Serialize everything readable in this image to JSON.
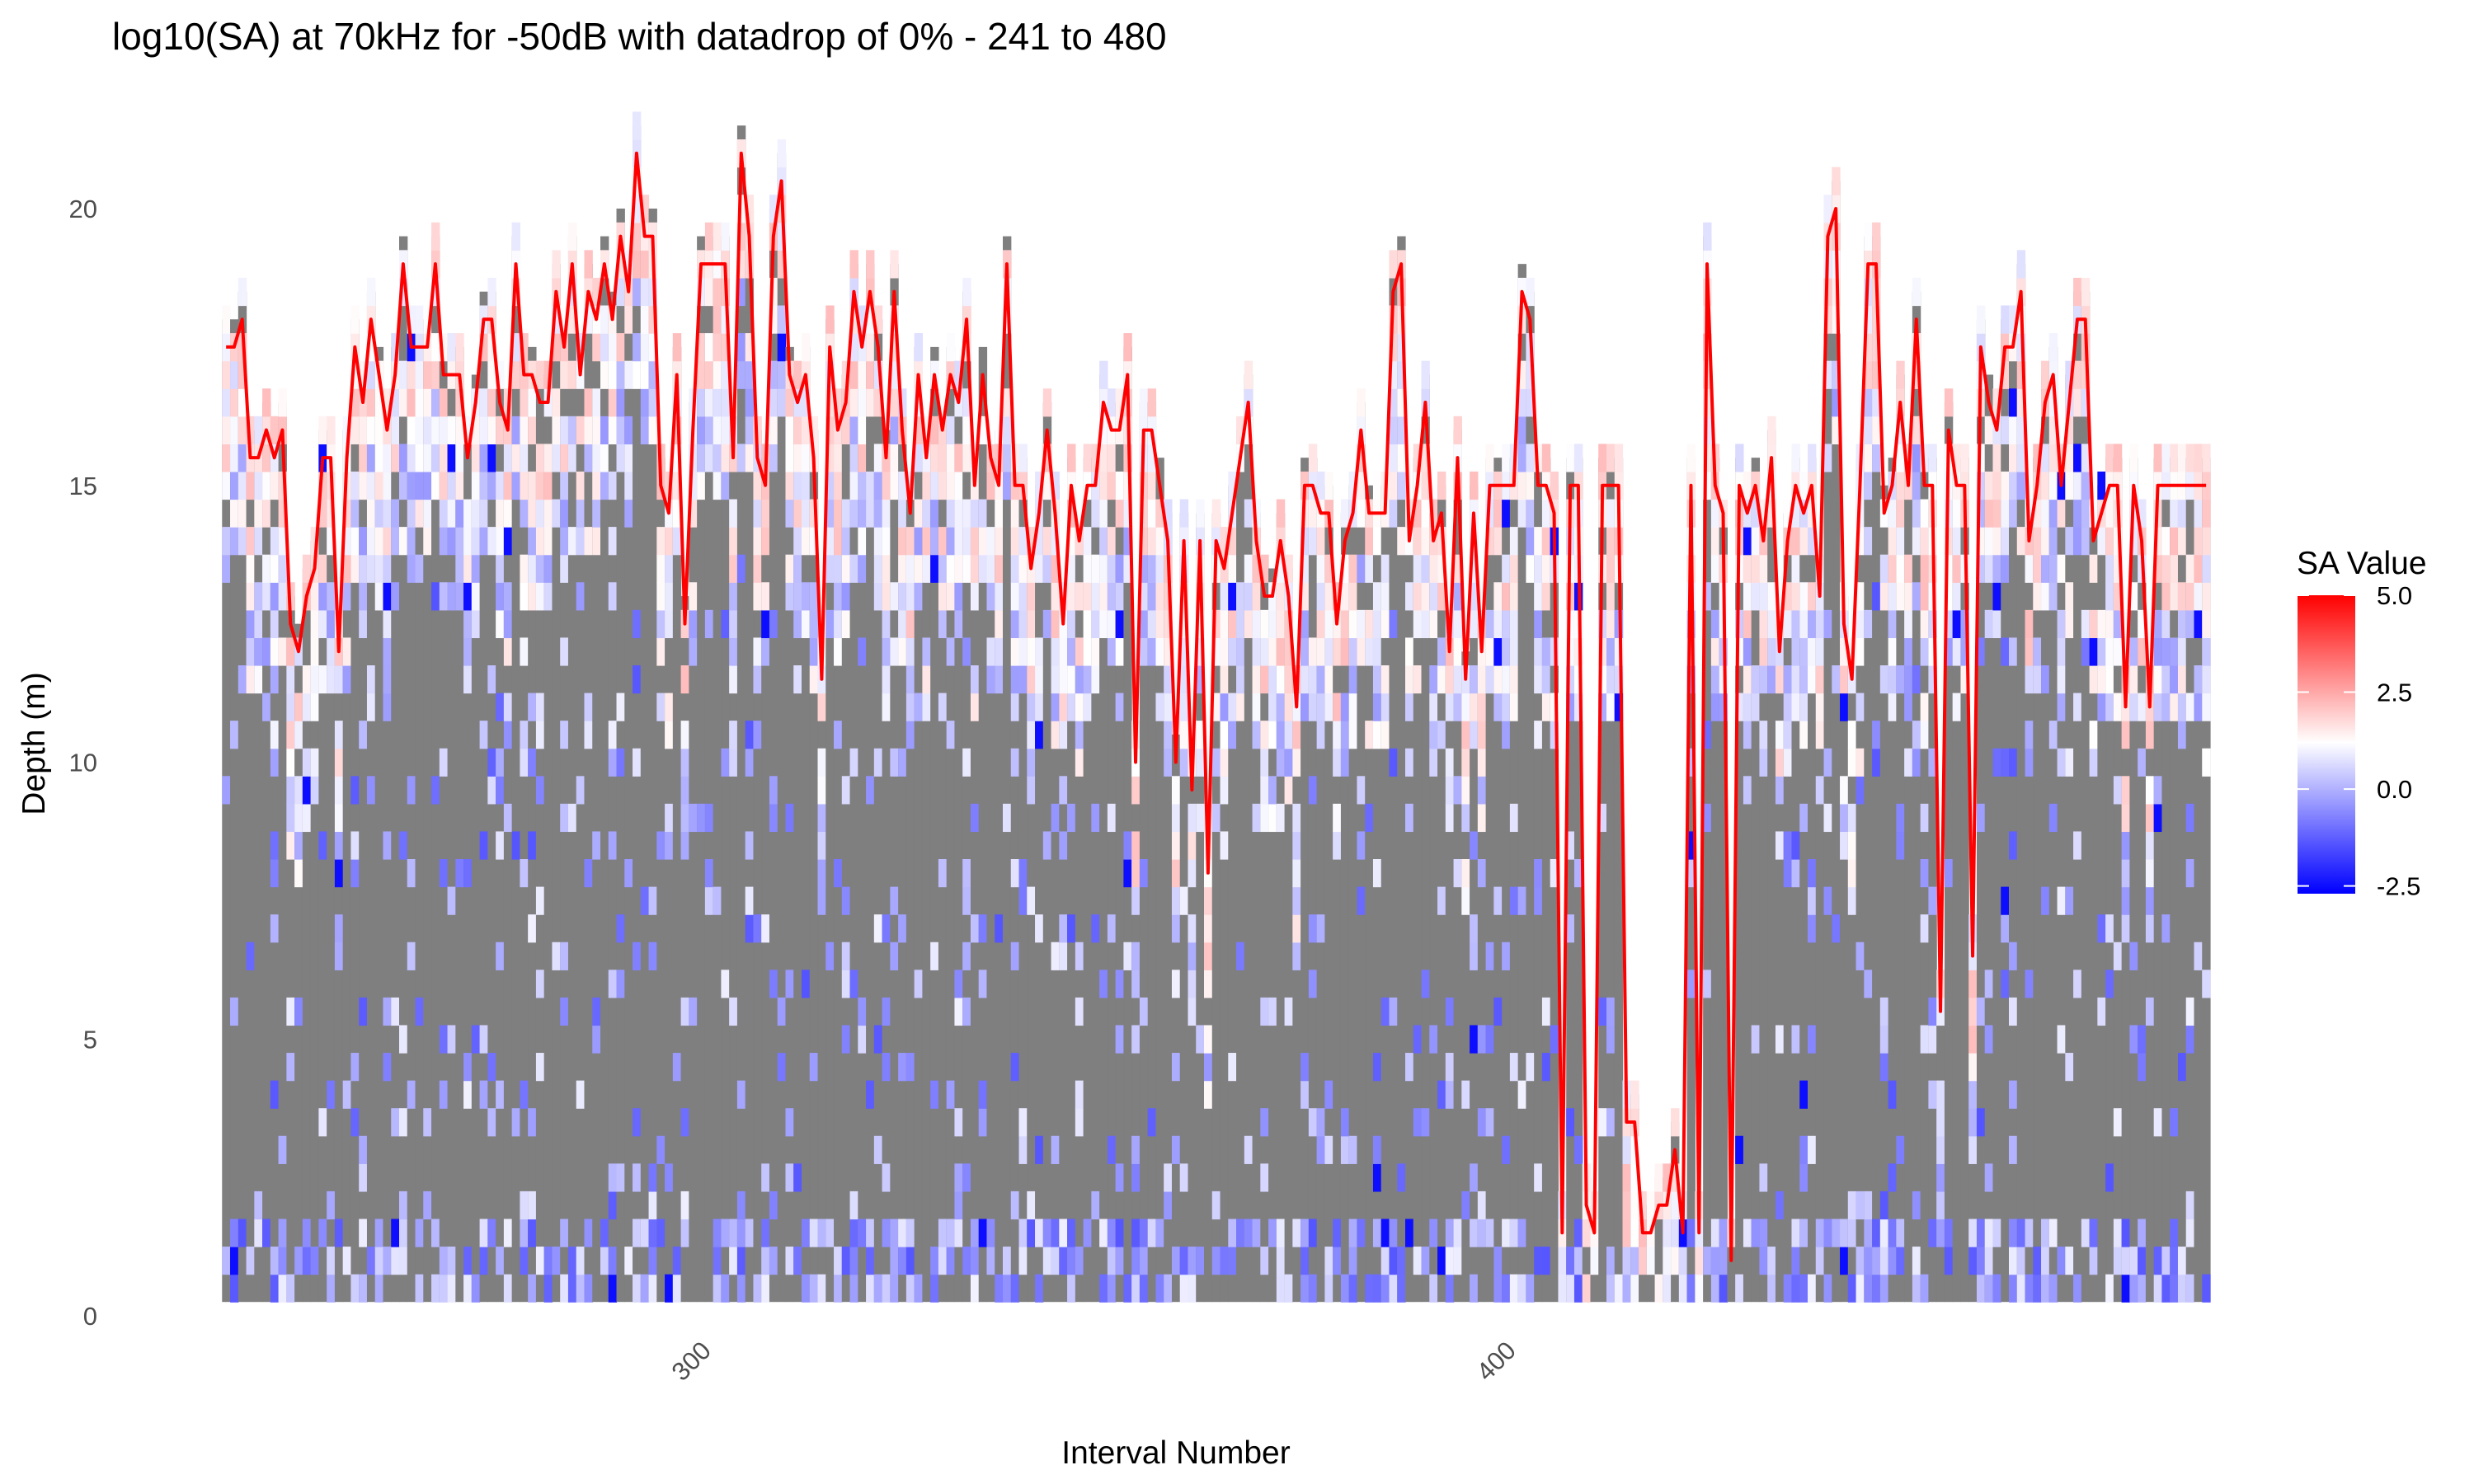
{
  "chart_data": {
    "type": "heatmap",
    "title": "log10(SA) at 70kHz for -50dB with datadrop of 0% - 241 to 480",
    "xlabel": "Interval Number",
    "ylabel": "Depth (m)",
    "xlim": [
      240.5,
      480.5
    ],
    "ylim": [
      0,
      21.5
    ],
    "x_ticks": [
      300,
      400
    ],
    "y_ticks": [
      0,
      5,
      10,
      15,
      20
    ],
    "x_tick_labels": [
      "300",
      "400"
    ],
    "y_tick_labels": [
      "0",
      "5",
      "10",
      "15",
      "20"
    ],
    "grid": false,
    "background_color": "#7f7f7f",
    "tile_height_m": 0.5,
    "colorscale": {
      "title": "SA Value",
      "low_color": "#0000ff",
      "mid_color": "#ffffff",
      "high_color": "#ff0000",
      "min": -2.7,
      "midpoint": 1.2,
      "max": 5.0,
      "breaks": [
        5.0,
        2.5,
        0.0,
        -2.5
      ],
      "break_labels": [
        "5.0",
        "2.5",
        "0.0",
        "-2.5"
      ],
      "legend_position": "right"
    },
    "line_series": {
      "color": "#ff0000",
      "x_start": 241,
      "x_step": 1,
      "depth": [
        17.5,
        17.5,
        18,
        15.5,
        15.5,
        16,
        15.5,
        16,
        12.5,
        12,
        13,
        13.5,
        15.5,
        15.5,
        12,
        15.5,
        17.5,
        16.5,
        18,
        17,
        16,
        17,
        19,
        17.5,
        17.5,
        17.5,
        19,
        17,
        17,
        17,
        15.5,
        16.5,
        18,
        18,
        16.5,
        16,
        19,
        17,
        17,
        16.5,
        16.5,
        18.5,
        17.5,
        19,
        17,
        18.5,
        18,
        19,
        18,
        19.5,
        18.5,
        21,
        19.5,
        19.5,
        15,
        14.5,
        17,
        12.5,
        16,
        19,
        19,
        19,
        19,
        15.5,
        21,
        19.5,
        15.5,
        15,
        19.5,
        20.5,
        17,
        16.5,
        17,
        15.5,
        11.5,
        17.5,
        16,
        16.5,
        18.5,
        17.5,
        18.5,
        17.5,
        15.5,
        18.5,
        16,
        14.5,
        17,
        15.5,
        17,
        16,
        17,
        16.5,
        18,
        15,
        17,
        15.5,
        15,
        19,
        15,
        15,
        13.5,
        14.5,
        16,
        14.5,
        12.5,
        15,
        14,
        15,
        15,
        16.5,
        16,
        16,
        17,
        10,
        16,
        16,
        15,
        14,
        10,
        14,
        9.5,
        14,
        8,
        14,
        13.5,
        14.5,
        15.5,
        16.5,
        14,
        13,
        13,
        14,
        13,
        11,
        15,
        15,
        14.5,
        14.5,
        12.5,
        14,
        14.5,
        16,
        14.5,
        14.5,
        14.5,
        18.5,
        19,
        14,
        15,
        16.5,
        14,
        14.5,
        12,
        15.5,
        11.5,
        14.5,
        12,
        15,
        15,
        15,
        15,
        18.5,
        18,
        15,
        15,
        14.5,
        1.5,
        15,
        15,
        2,
        1.5,
        15,
        15,
        15,
        3.5,
        3.5,
        1.5,
        1.5,
        2,
        2,
        3,
        1.5,
        15,
        1.5,
        19,
        15,
        14.5,
        1,
        15,
        14.5,
        15,
        14,
        15.5,
        12,
        14,
        15,
        14.5,
        15,
        13,
        19.5,
        20,
        12.5,
        11.5,
        15,
        19,
        19,
        14.5,
        15,
        16.5,
        15,
        18,
        15,
        15,
        5.5,
        16,
        15,
        15,
        6.5,
        17.5,
        16.5,
        16,
        17.5,
        17.5,
        18.5,
        14,
        15,
        16.5,
        17,
        15,
        16.5,
        18,
        18,
        14,
        14.5,
        15,
        15,
        11,
        15,
        14,
        11,
        15,
        15,
        15,
        15,
        15,
        15,
        15
      ]
    }
  }
}
